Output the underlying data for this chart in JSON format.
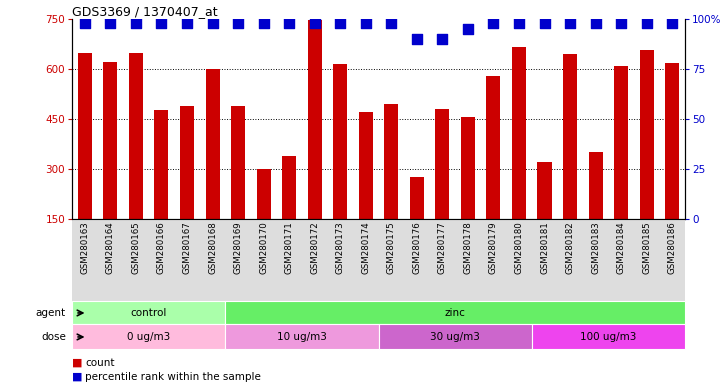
{
  "title": "GDS3369 / 1370407_at",
  "samples": [
    "GSM280163",
    "GSM280164",
    "GSM280165",
    "GSM280166",
    "GSM280167",
    "GSM280168",
    "GSM280169",
    "GSM280170",
    "GSM280171",
    "GSM280172",
    "GSM280173",
    "GSM280174",
    "GSM280175",
    "GSM280176",
    "GSM280177",
    "GSM280178",
    "GSM280179",
    "GSM280180",
    "GSM280181",
    "GSM280182",
    "GSM280183",
    "GSM280184",
    "GSM280185",
    "GSM280186"
  ],
  "counts": [
    648,
    622,
    648,
    478,
    488,
    600,
    490,
    300,
    340,
    748,
    615,
    470,
    495,
    275,
    480,
    455,
    580,
    665,
    320,
    645,
    350,
    610,
    658,
    618
  ],
  "percentile_ranks": [
    98,
    98,
    98,
    98,
    98,
    98,
    98,
    98,
    98,
    98,
    98,
    98,
    98,
    90,
    90,
    95,
    98,
    98,
    98,
    98,
    98,
    98,
    98,
    98
  ],
  "bar_color": "#cc0000",
  "dot_color": "#0000cc",
  "ylim_left": [
    150,
    750
  ],
  "ylim_right": [
    0,
    100
  ],
  "yticks_left": [
    150,
    300,
    450,
    600,
    750
  ],
  "yticks_right": [
    0,
    25,
    50,
    75,
    100
  ],
  "gridlines": [
    300,
    450,
    600
  ],
  "agent_groups": [
    {
      "label": "control",
      "start": 0,
      "end": 6,
      "color": "#aaffaa"
    },
    {
      "label": "zinc",
      "start": 6,
      "end": 24,
      "color": "#66ee66"
    }
  ],
  "dose_groups": [
    {
      "label": "0 ug/m3",
      "start": 0,
      "end": 6,
      "color": "#ffbbdd"
    },
    {
      "label": "10 ug/m3",
      "start": 6,
      "end": 12,
      "color": "#ee99dd"
    },
    {
      "label": "30 ug/m3",
      "start": 12,
      "end": 18,
      "color": "#cc66cc"
    },
    {
      "label": "100 ug/m3",
      "start": 18,
      "end": 24,
      "color": "#ee44ee"
    }
  ],
  "agent_label": "agent",
  "dose_label": "dose",
  "left_ylabel_color": "#cc0000",
  "right_ylabel_color": "#0000cc",
  "bar_width": 0.55,
  "dot_size": 45,
  "dot_marker": "s"
}
